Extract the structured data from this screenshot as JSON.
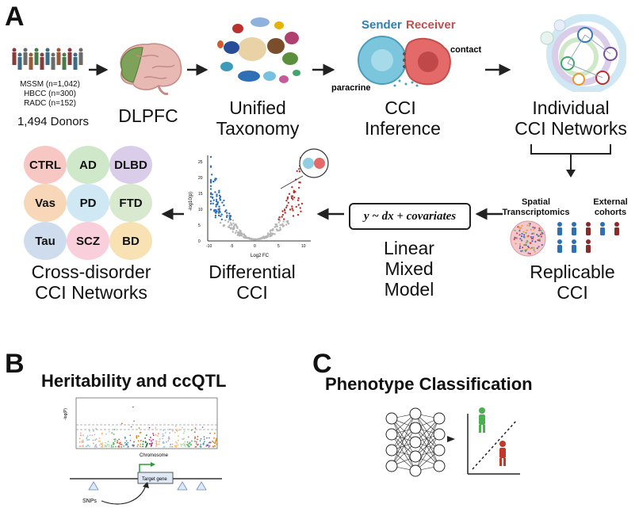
{
  "panels": {
    "a": "A",
    "b": "B",
    "c": "C"
  },
  "cohorts": {
    "lines": [
      "MSSM (n=1,042)",
      "HBCC (n=300)",
      "RADC (n=152)"
    ],
    "total": "1,494 Donors"
  },
  "steps": {
    "dlpfc": "DLPFC",
    "taxonomy": [
      "Unified",
      "Taxonomy"
    ],
    "inference": [
      "CCI",
      "Inference"
    ],
    "networks": [
      "Individual",
      "CCI Networks"
    ],
    "replicable": [
      "Replicable",
      "CCI"
    ],
    "lmm": [
      "Linear",
      "Mixed",
      "Model"
    ],
    "differential": [
      "Differential",
      "CCI"
    ],
    "cross": [
      "Cross-disorder",
      "CCI Networks"
    ]
  },
  "cci_labels": {
    "sender": "Sender",
    "receiver": "Receiver",
    "contact": "contact",
    "paracrine": "paracrine"
  },
  "validation": {
    "spatial": [
      "Spatial",
      "Transcriptomics"
    ],
    "external": [
      "External",
      "cohorts"
    ]
  },
  "formula": "y ~ dx + covariates",
  "disorders": [
    "CTRL",
    "AD",
    "DLBD",
    "Vas",
    "PD",
    "FTD",
    "Tau",
    "SCZ",
    "BD"
  ],
  "volcano": {
    "xlabel": "Log2 FC",
    "ylabel": "-log10(p)",
    "xticks": [
      "-10",
      "-5",
      "0",
      "5",
      "10"
    ],
    "yticks": [
      "0",
      "5",
      "10",
      "15",
      "20",
      "25"
    ]
  },
  "panel_b": {
    "title": "Heritability and ccQTL",
    "xlabel": "Chromosome",
    "ylabel": "-log(P)",
    "target": "Target gene",
    "snps": "SNPs"
  },
  "panel_c": {
    "title": "Phenotype Classification"
  },
  "colors": {
    "blue": "#2e6fb6",
    "red": "#b8312f",
    "grey": "#b5b5b5",
    "disorder_bg": [
      "#f7c8c3",
      "#cfe8c9",
      "#d9cdea",
      "#f7d7b7",
      "#cfe8f3",
      "#d8e9cf",
      "#cfdcee",
      "#f9cfdb",
      "#f8e2b3"
    ]
  }
}
